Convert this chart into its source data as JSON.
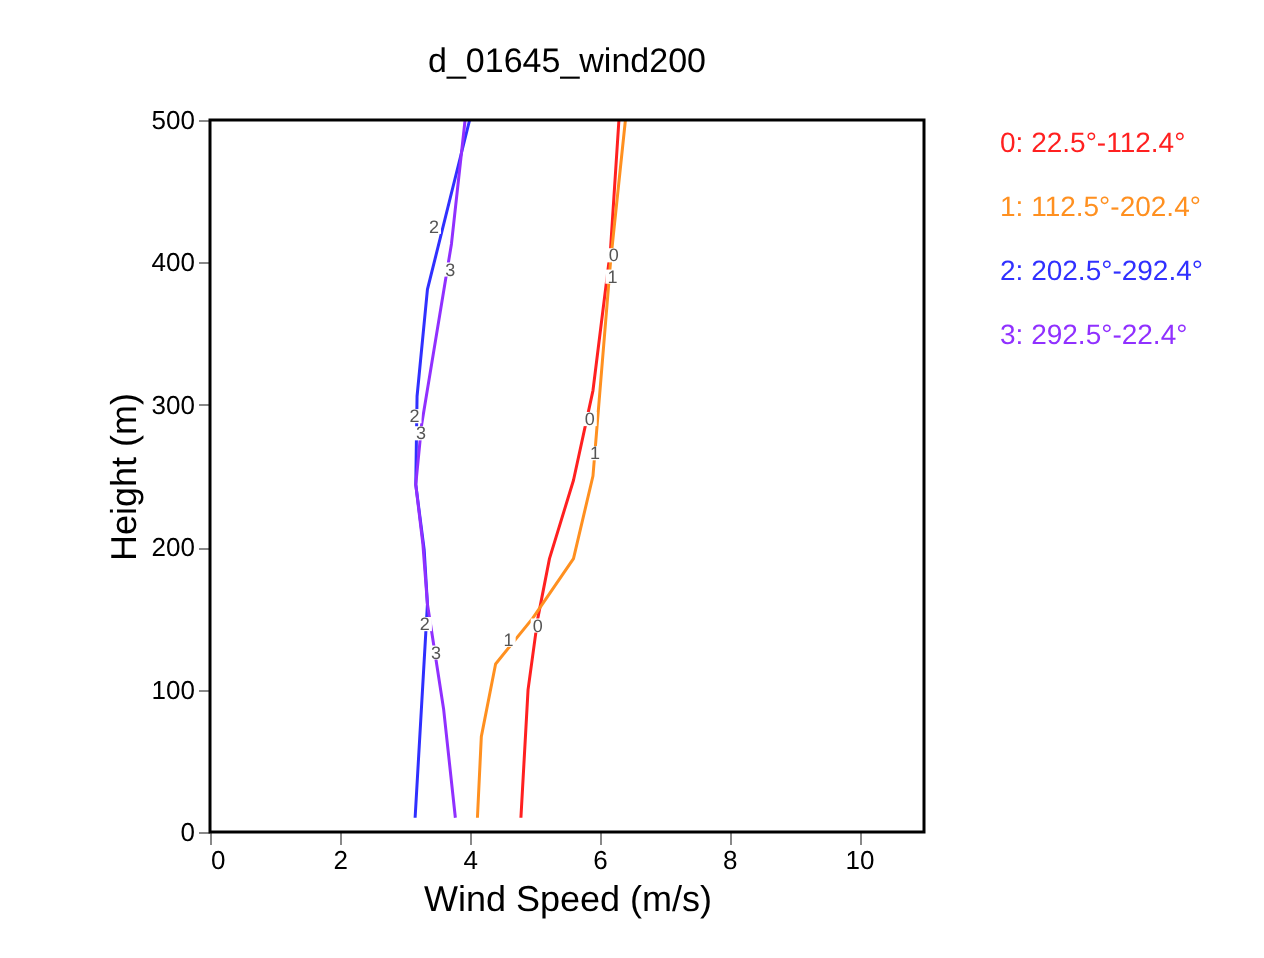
{
  "chart_data": {
    "type": "line",
    "title": "d_01645_wind200",
    "xlabel": "Wind Speed (m/s)",
    "ylabel": "Height (m)",
    "xlim": [
      0,
      11
    ],
    "xticks": [
      0,
      2,
      4,
      6,
      8,
      10
    ],
    "ylim": [
      0,
      500
    ],
    "yticks": [
      0,
      100,
      200,
      300,
      400,
      500
    ],
    "grid": false,
    "legend": "right",
    "marker": "none",
    "line_style": "solid",
    "series": [
      {
        "name": "0: 22.5°-112.4°",
        "color": "#ff2020",
        "x": [
          4.79,
          4.9,
          5.05,
          5.23,
          5.6,
          5.9,
          6.17,
          6.3
        ],
        "values": [
          10,
          100,
          150,
          192,
          247,
          310,
          409,
          500
        ]
      },
      {
        "name": "1: 112.5°-202.4°",
        "color": "#ff9020",
        "x": [
          4.12,
          4.18,
          4.4,
          4.97,
          5.6,
          5.9,
          6.17,
          6.4
        ],
        "values": [
          10,
          67,
          118,
          150,
          192,
          250,
          400,
          500
        ]
      },
      {
        "name": "2: 202.5°-292.4°",
        "color": "#3030ff",
        "x": [
          3.16,
          3.35,
          3.3,
          3.17,
          3.19,
          3.35,
          4.0
        ],
        "values": [
          10,
          160,
          198,
          244,
          306,
          381,
          500
        ]
      },
      {
        "name": "3: 292.5°-22.4°",
        "color": "#9030ff",
        "x": [
          3.78,
          3.6,
          3.35,
          3.28,
          3.17,
          3.26,
          3.72,
          3.93
        ],
        "values": [
          10,
          86,
          160,
          202,
          244,
          286,
          413,
          500
        ]
      }
    ],
    "annotations": [
      {
        "text": "0",
        "x": 6.22,
        "y": 405
      },
      {
        "text": "0",
        "x": 5.85,
        "y": 290
      },
      {
        "text": "0",
        "x": 5.05,
        "y": 145
      },
      {
        "text": "1",
        "x": 6.2,
        "y": 390
      },
      {
        "text": "1",
        "x": 5.93,
        "y": 266
      },
      {
        "text": "1",
        "x": 4.6,
        "y": 135
      },
      {
        "text": "2",
        "x": 3.45,
        "y": 425
      },
      {
        "text": "2",
        "x": 3.15,
        "y": 292
      },
      {
        "text": "2",
        "x": 3.31,
        "y": 146
      },
      {
        "text": "3",
        "x": 3.7,
        "y": 395
      },
      {
        "text": "3",
        "x": 3.25,
        "y": 280
      },
      {
        "text": "3",
        "x": 3.48,
        "y": 126
      }
    ]
  }
}
